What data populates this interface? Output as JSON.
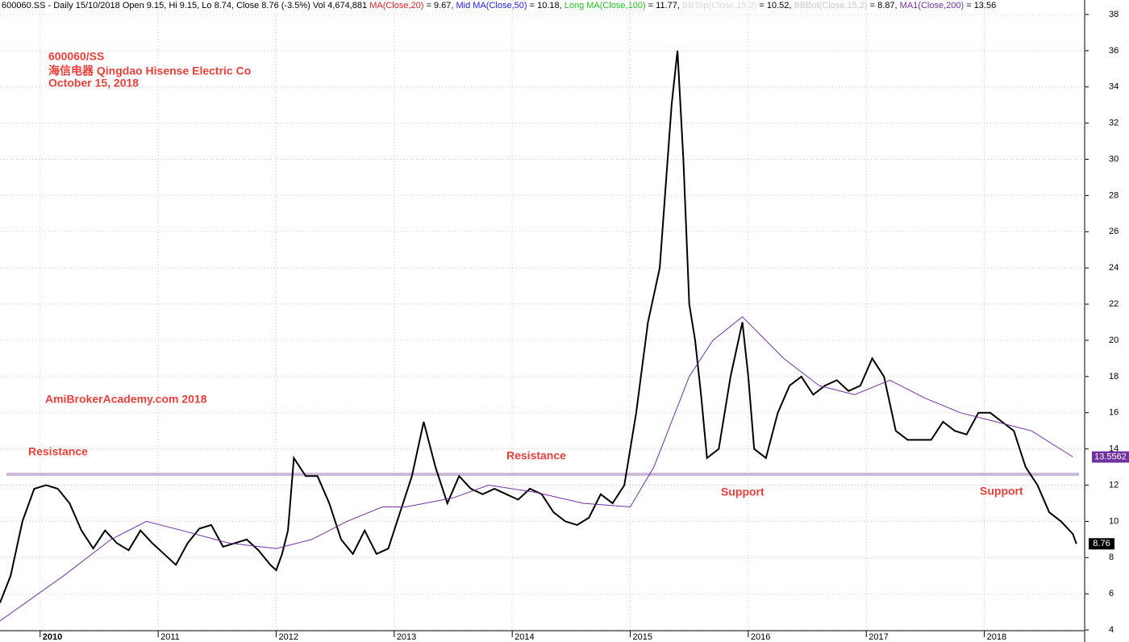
{
  "chart_data": {
    "type": "line",
    "header": [
      {
        "text": "600060.SS - Daily 15/10/2018 Open 9.15, Hi 9.15, Lo 8.74, Close 8.76 (-3.5%) Vol 4,674,881 ",
        "color": "#000000"
      },
      {
        "text": "MA(Close,20)",
        "color": "#e02020"
      },
      {
        "text": " = 9.67, ",
        "color": "#000000"
      },
      {
        "text": "Mid MA(Close,50)",
        "color": "#2020e0"
      },
      {
        "text": " = 10.18, ",
        "color": "#000000"
      },
      {
        "text": "Long MA(Close,100)",
        "color": "#20c020"
      },
      {
        "text": " = 11.77, ",
        "color": "#000000"
      },
      {
        "text": "BBTop(Close,15,2)",
        "color": "#d8d8d8"
      },
      {
        "text": " = 10.52, ",
        "color": "#000000"
      },
      {
        "text": "BBBot(Close,15,2)",
        "color": "#c8c8c8"
      },
      {
        "text": " = 8.87, ",
        "color": "#000000"
      },
      {
        "text": "MA1(Close,200)",
        "color": "#7030a0"
      },
      {
        "text": " = 13.56",
        "color": "#000000"
      }
    ],
    "annotations": [
      "600060/SS",
      "海信电器  Qingdao Hisense Electric Co",
      "October 15, 2018",
      "AmiBrokerAcademy.com  2018",
      "Resistance",
      "Resistance",
      "Support",
      "Support"
    ],
    "annotation_color": "#e8403a",
    "xlim": [
      2009.66,
      2018.85
    ],
    "xticks": [
      2010,
      2011,
      2012,
      2013,
      2014,
      2015,
      2016,
      2017,
      2018
    ],
    "ylim": [
      3.96,
      38.8
    ],
    "yticks": [
      4,
      6,
      8,
      10,
      12,
      14,
      16,
      18,
      20,
      22,
      24,
      26,
      28,
      30,
      32,
      34,
      36,
      38
    ],
    "grid": true,
    "hline": {
      "value": 12.6,
      "color": "#c9b8d8"
    },
    "price_labels": [
      {
        "value": 13.5562,
        "color": "#7030a0"
      },
      {
        "value": 8.76,
        "color": "#ffffff"
      }
    ],
    "series": [
      {
        "color": "#000000",
        "x": [
          2009.66,
          2009.75,
          2009.85,
          2009.95,
          2010.05,
          2010.15,
          2010.25,
          2010.35,
          2010.45,
          2010.55,
          2010.65,
          2010.75,
          2010.85,
          2010.95,
          2011.05,
          2011.15,
          2011.25,
          2011.35,
          2011.45,
          2011.55,
          2011.65,
          2011.75,
          2011.85,
          2011.95,
          2012.0,
          2012.05,
          2012.1,
          2012.15,
          2012.25,
          2012.35,
          2012.45,
          2012.55,
          2012.65,
          2012.75,
          2012.85,
          2012.95,
          2013.05,
          2013.15,
          2013.25,
          2013.35,
          2013.45,
          2013.55,
          2013.65,
          2013.75,
          2013.85,
          2013.95,
          2014.05,
          2014.15,
          2014.25,
          2014.35,
          2014.45,
          2014.55,
          2014.65,
          2014.75,
          2014.85,
          2014.95,
          2015.05,
          2015.15,
          2015.25,
          2015.35,
          2015.4,
          2015.45,
          2015.5,
          2015.55,
          2015.6,
          2015.65,
          2015.75,
          2015.85,
          2015.95,
          2016.0,
          2016.05,
          2016.15,
          2016.25,
          2016.35,
          2016.45,
          2016.55,
          2016.65,
          2016.75,
          2016.85,
          2016.95,
          2017.05,
          2017.15,
          2017.25,
          2017.35,
          2017.45,
          2017.55,
          2017.65,
          2017.75,
          2017.85,
          2017.95,
          2018.05,
          2018.15,
          2018.25,
          2018.35,
          2018.45,
          2018.55,
          2018.65,
          2018.75,
          2018.78
        ],
        "values": [
          5.5,
          7,
          10,
          11.8,
          12,
          11.8,
          11,
          9.5,
          8.5,
          9.5,
          8.8,
          8.4,
          9.5,
          8.8,
          8.2,
          7.6,
          8.8,
          9.6,
          9.8,
          8.6,
          8.8,
          9,
          8.4,
          7.6,
          7.3,
          8.2,
          9.5,
          13.5,
          12.5,
          12.5,
          11,
          9,
          8.2,
          9.5,
          8.2,
          8.5,
          10.5,
          12.5,
          15.5,
          13,
          11,
          12.5,
          11.8,
          11.5,
          11.8,
          11.5,
          11.2,
          11.8,
          11.5,
          10.5,
          10,
          9.8,
          10.2,
          11.5,
          11,
          12,
          16,
          21,
          24,
          33,
          36,
          30,
          22,
          20,
          17,
          13.5,
          14,
          18,
          21,
          18,
          14,
          13.5,
          16,
          17.5,
          18,
          17,
          17.5,
          17.8,
          17.2,
          17.5,
          19,
          18,
          15,
          14.5,
          14.5,
          14.5,
          15.5,
          15,
          14.8,
          16,
          16,
          15.5,
          15,
          13,
          12,
          10.5,
          10,
          9.3,
          8.76
        ]
      },
      {
        "color": "#7030a0",
        "x": [
          2009.66,
          2010.2,
          2010.6,
          2010.9,
          2011.2,
          2011.6,
          2012.0,
          2012.3,
          2012.6,
          2012.9,
          2013.1,
          2013.5,
          2013.8,
          2014.2,
          2014.6,
          2015.0,
          2015.2,
          2015.5,
          2015.7,
          2015.95,
          2016.3,
          2016.6,
          2016.9,
          2017.2,
          2017.5,
          2017.8,
          2018.1,
          2018.4,
          2018.75
        ],
        "values": [
          4.5,
          7,
          9,
          10,
          9.5,
          8.8,
          8.5,
          9,
          10,
          10.8,
          10.8,
          11.3,
          12,
          11.6,
          11,
          10.8,
          13,
          18,
          20,
          21.3,
          19,
          17.5,
          17,
          17.8,
          16.8,
          16,
          15.5,
          15,
          13.56
        ]
      }
    ]
  }
}
